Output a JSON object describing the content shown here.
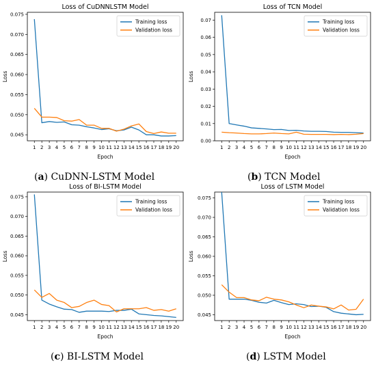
{
  "captions": [
    {
      "letter": "a",
      "text": " CuDNN-LSTM Model",
      "open": "(",
      "close": ")"
    },
    {
      "letter": "b",
      "text": " TCN Model",
      "open": "(",
      "close": ")"
    },
    {
      "letter": "c",
      "text": " BI-LSTM Model",
      "open": "(",
      "close": ")"
    },
    {
      "letter": "d",
      "text": " LSTM Model",
      "open": "(",
      "close": ")"
    }
  ],
  "colors": {
    "training": "#1f77b4",
    "validation": "#ff7f0e"
  },
  "chart_data": [
    {
      "type": "line",
      "title": "Loss of CuDNNLSTM Model",
      "xlabel": "Epoch",
      "ylabel": "Loss",
      "x": [
        1,
        2,
        3,
        4,
        5,
        6,
        7,
        8,
        9,
        10,
        11,
        12,
        13,
        14,
        15,
        16,
        17,
        18,
        19,
        20
      ],
      "xticks": [
        1,
        2,
        3,
        4,
        5,
        6,
        7,
        8,
        9,
        10,
        11,
        12,
        13,
        14,
        15,
        16,
        17,
        18,
        19,
        20
      ],
      "ylim": [
        0.0435,
        0.0755
      ],
      "yticks": [
        0.045,
        0.05,
        0.055,
        0.06,
        0.065,
        0.07,
        0.075
      ],
      "ytick_labels": [
        "0.045",
        "0.050",
        "0.055",
        "0.060",
        "0.065",
        "0.070",
        "0.075"
      ],
      "legend": "top-right",
      "series": [
        {
          "name": "Training loss",
          "values": [
            0.0738,
            0.048,
            0.0483,
            0.0481,
            0.0482,
            0.0475,
            0.0474,
            0.047,
            0.0467,
            0.0463,
            0.0465,
            0.046,
            0.0462,
            0.0469,
            0.0462,
            0.045,
            0.045,
            0.0447,
            0.0447,
            0.0448
          ]
        },
        {
          "name": "Validation loss",
          "values": [
            0.0516,
            0.0494,
            0.0494,
            0.0493,
            0.0485,
            0.0484,
            0.0488,
            0.0474,
            0.0474,
            0.0466,
            0.0466,
            0.0459,
            0.0464,
            0.0472,
            0.0477,
            0.0458,
            0.0453,
            0.0457,
            0.0454,
            0.0454
          ]
        }
      ]
    },
    {
      "type": "line",
      "title": "Loss of TCN Model",
      "xlabel": "Epoch",
      "ylabel": "Loss",
      "x": [
        1,
        2,
        3,
        4,
        5,
        6,
        7,
        8,
        9,
        10,
        11,
        12,
        13,
        14,
        15,
        16,
        17,
        18,
        19,
        20
      ],
      "xticks": [
        1,
        2,
        3,
        4,
        5,
        6,
        7,
        8,
        9,
        10,
        11,
        12,
        13,
        14,
        15,
        16,
        17,
        18,
        19,
        20
      ],
      "ylim": [
        0.0,
        0.0745
      ],
      "yticks": [
        0.0,
        0.01,
        0.02,
        0.03,
        0.04,
        0.05,
        0.06,
        0.07
      ],
      "ytick_labels": [
        "0.00",
        "0.01",
        "0.02",
        "0.03",
        "0.04",
        "0.05",
        "0.06",
        "0.07"
      ],
      "legend": "top-right",
      "series": [
        {
          "name": "Training loss",
          "values": [
            0.0728,
            0.01,
            0.0092,
            0.0085,
            0.0075,
            0.0072,
            0.0069,
            0.0065,
            0.0066,
            0.006,
            0.0061,
            0.0057,
            0.0055,
            0.0055,
            0.0054,
            0.005,
            0.0049,
            0.0049,
            0.0047,
            0.0045
          ]
        },
        {
          "name": "Validation loss",
          "values": [
            0.005,
            0.0047,
            0.0045,
            0.0042,
            0.004,
            0.004,
            0.0042,
            0.0045,
            0.0042,
            0.004,
            0.005,
            0.0038,
            0.0037,
            0.0037,
            0.0037,
            0.0036,
            0.0037,
            0.0036,
            0.0038,
            0.0042
          ]
        }
      ]
    },
    {
      "type": "line",
      "title": "Loss of BI-LSTM Model",
      "xlabel": "Epoch",
      "ylabel": "Loss",
      "x": [
        1,
        2,
        3,
        4,
        5,
        6,
        7,
        8,
        9,
        10,
        11,
        12,
        13,
        14,
        15,
        16,
        17,
        18,
        19,
        20
      ],
      "xticks": [
        1,
        2,
        3,
        4,
        5,
        6,
        7,
        8,
        9,
        10,
        11,
        12,
        13,
        14,
        15,
        16,
        17,
        18,
        19,
        20
      ],
      "ylim": [
        0.0435,
        0.0762
      ],
      "yticks": [
        0.045,
        0.05,
        0.055,
        0.06,
        0.065,
        0.07,
        0.075
      ],
      "ytick_labels": [
        "0.045",
        "0.050",
        "0.055",
        "0.060",
        "0.065",
        "0.070",
        "0.075"
      ],
      "legend": "top-right",
      "series": [
        {
          "name": "Training loss",
          "values": [
            0.0756,
            0.0487,
            0.0477,
            0.047,
            0.0464,
            0.0463,
            0.0456,
            0.0459,
            0.0459,
            0.0459,
            0.0458,
            0.0461,
            0.0461,
            0.0464,
            0.0452,
            0.045,
            0.0448,
            0.0447,
            0.0445,
            0.0443
          ]
        },
        {
          "name": "Validation loss",
          "values": [
            0.0513,
            0.0494,
            0.0504,
            0.0487,
            0.0481,
            0.0468,
            0.0471,
            0.0481,
            0.0487,
            0.0476,
            0.0473,
            0.0457,
            0.0465,
            0.0465,
            0.0465,
            0.0468,
            0.0461,
            0.0463,
            0.0459,
            0.0465
          ]
        }
      ]
    },
    {
      "type": "line",
      "title": "Loss of LSTM Model",
      "xlabel": "Epoch",
      "ylabel": "Loss",
      "x": [
        1,
        2,
        3,
        4,
        5,
        6,
        7,
        8,
        9,
        10,
        11,
        12,
        13,
        14,
        15,
        16,
        17,
        18,
        19,
        20
      ],
      "xticks": [
        1,
        2,
        3,
        4,
        5,
        6,
        7,
        8,
        9,
        10,
        11,
        12,
        13,
        14,
        15,
        16,
        17,
        18,
        19,
        20
      ],
      "ylim": [
        0.0435,
        0.0765
      ],
      "yticks": [
        0.045,
        0.05,
        0.055,
        0.06,
        0.065,
        0.07,
        0.075
      ],
      "ytick_labels": [
        "0.045",
        "0.050",
        "0.055",
        "0.060",
        "0.065",
        "0.070",
        "0.075"
      ],
      "legend": "top-right",
      "series": [
        {
          "name": "Training loss",
          "values": [
            0.0765,
            0.049,
            0.049,
            0.049,
            0.0487,
            0.0482,
            0.048,
            0.0487,
            0.0481,
            0.0476,
            0.0478,
            0.0476,
            0.0471,
            0.0472,
            0.0469,
            0.0458,
            0.0454,
            0.0452,
            0.045,
            0.0451
          ]
        },
        {
          "name": "Validation loss",
          "values": [
            0.0527,
            0.0508,
            0.0494,
            0.0494,
            0.0488,
            0.0486,
            0.0495,
            0.049,
            0.0488,
            0.0483,
            0.0475,
            0.0468,
            0.0475,
            0.0472,
            0.047,
            0.0465,
            0.0475,
            0.0462,
            0.0464,
            0.049
          ]
        }
      ]
    }
  ]
}
